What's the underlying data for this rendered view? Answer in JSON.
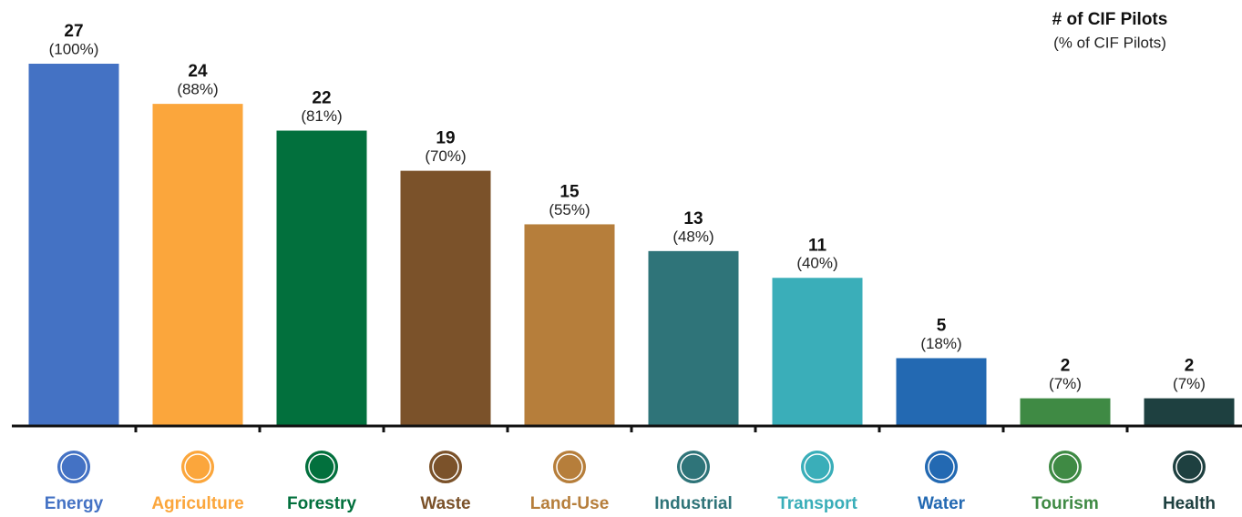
{
  "chart_data": {
    "type": "bar",
    "legend_title": "# of CIF Pilots",
    "legend_subtitle": "(% of CIF Pilots)",
    "categories": [
      "Energy",
      "Agriculture",
      "Forestry",
      "Waste",
      "Land-Use",
      "Industrial",
      "Transport",
      "Water",
      "Tourism",
      "Health"
    ],
    "values": [
      27,
      24,
      22,
      19,
      15,
      13,
      11,
      5,
      2,
      2
    ],
    "percent_labels": [
      "(100%)",
      "(88%)",
      "(81%)",
      "(70%)",
      "(55%)",
      "(48%)",
      "(40%)",
      "(18%)",
      "(7%)",
      "(7%)"
    ],
    "colors": [
      "#4472c4",
      "#fba63c",
      "#02703d",
      "#7b522a",
      "#b67e3b",
      "#2f7479",
      "#3aaeb9",
      "#2369b2",
      "#3f8a44",
      "#1e4040"
    ],
    "ylim": [
      0,
      27
    ]
  }
}
